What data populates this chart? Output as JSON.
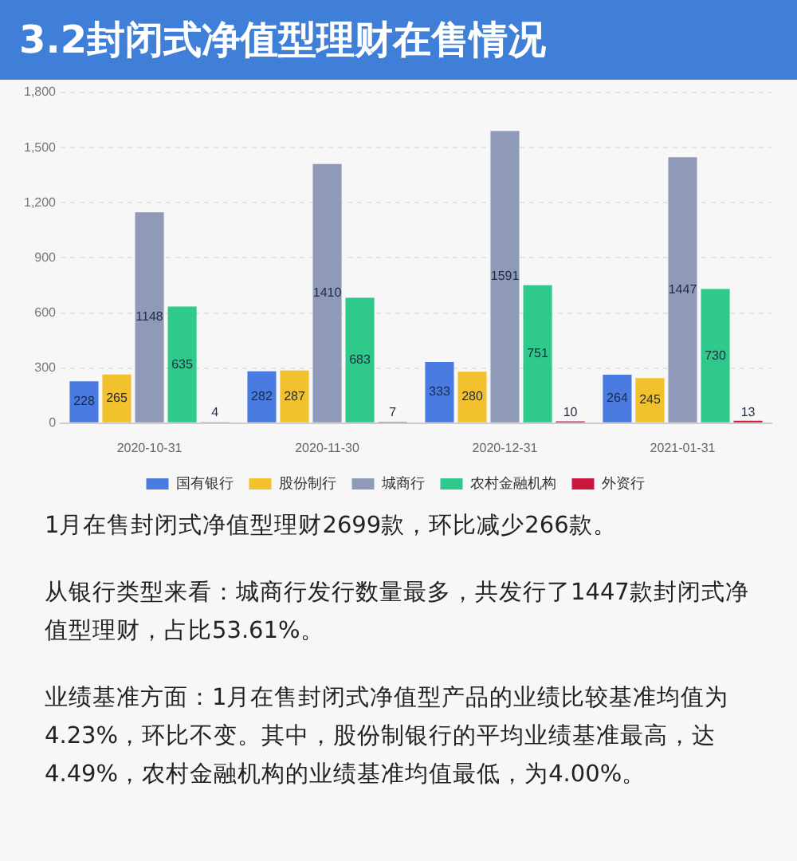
{
  "chart_data": {
    "type": "bar",
    "title": "3.2封闭式净值型理财在售情况",
    "categories": [
      "2020-10-31",
      "2020-11-30",
      "2020-12-31",
      "2021-01-31"
    ],
    "series": [
      {
        "name": "国有银行",
        "color": "#4a7be0",
        "values": [
          228,
          282,
          333,
          264
        ]
      },
      {
        "name": "股份制行",
        "color": "#f2c12e",
        "values": [
          265,
          287,
          280,
          245
        ]
      },
      {
        "name": "城商行",
        "color": "#8e9ab8",
        "values": [
          1148,
          1410,
          1591,
          1447
        ]
      },
      {
        "name": "农村金融机构",
        "color": "#2fc98b",
        "values": [
          635,
          683,
          751,
          730
        ]
      },
      {
        "name": "外资行",
        "color": "#c8163c",
        "values": [
          4,
          7,
          10,
          13
        ]
      }
    ],
    "ylim": [
      0,
      1800
    ],
    "yticks": [
      0,
      300,
      600,
      900,
      {
        "value": 1200,
        "label": "1,200"
      },
      {
        "value": 1500,
        "label": "1,500"
      },
      {
        "value": 1800,
        "label": "1,800"
      }
    ],
    "grid": "y",
    "legend": "bottom",
    "data_labels": true,
    "annotations": [
      "1月在售封闭式净值型理财2699款，环比减少266款。",
      "从银行类型来看：城商行发行数量最多，共发行了1447款封闭式净值型理财，占比53.61%。",
      "业绩基准方面：1月在售封闭式净值型产品的业绩比较基准均值为4.23%，环比不变。其中，股份制银行的平均业绩基准最高，达4.49%，农村金融机构的业绩基准均值最低，为4.00%。"
    ]
  }
}
